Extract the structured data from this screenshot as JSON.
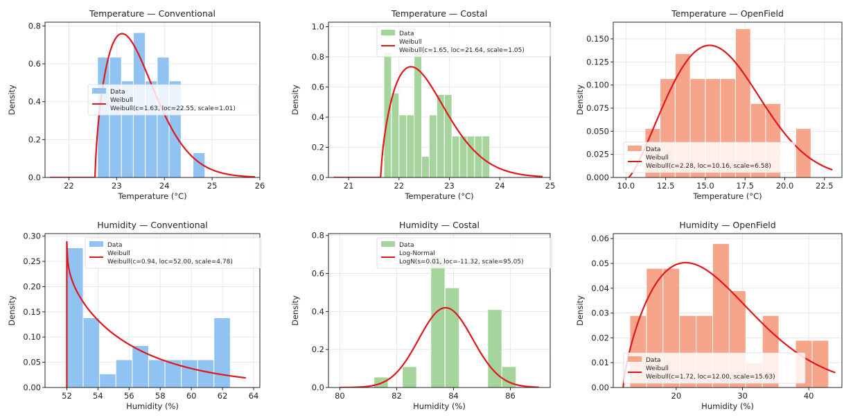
{
  "chart_data": [
    {
      "type": "bar",
      "title": "Temperature — Conventional",
      "xlabel": "Temperature (°C)",
      "ylabel": "Density",
      "xlim": [
        21.5,
        26.0
      ],
      "ylim": [
        0,
        0.82
      ],
      "xticks": [
        22,
        23,
        24,
        25,
        26
      ],
      "yticks": [
        0.0,
        0.2,
        0.4,
        0.6,
        0.8
      ],
      "ytick_labels": [
        "0.0",
        "0.2",
        "0.4",
        "0.6",
        "0.8"
      ],
      "bins": [
        {
          "x0": 22.6,
          "x1": 22.85,
          "y": 0.635
        },
        {
          "x0": 22.85,
          "x1": 23.1,
          "y": 0.635
        },
        {
          "x0": 23.1,
          "x1": 23.35,
          "y": 0.51
        },
        {
          "x0": 23.35,
          "x1": 23.6,
          "y": 0.765
        },
        {
          "x0": 23.6,
          "x1": 23.85,
          "y": 0.51
        },
        {
          "x0": 23.85,
          "x1": 24.1,
          "y": 0.635
        },
        {
          "x0": 24.1,
          "x1": 24.35,
          "y": 0.51
        },
        {
          "x0": 24.35,
          "x1": 24.6,
          "y": 0.0
        },
        {
          "x0": 24.6,
          "x1": 24.85,
          "y": 0.13
        }
      ],
      "fit": {
        "dist": "weibull",
        "c": 1.63,
        "loc": 22.55,
        "scale": 1.01,
        "x_range": [
          21.6,
          25.9
        ]
      },
      "legend": {
        "position": "center-left",
        "entries": [
          {
            "name": "Data",
            "kind": "patch"
          },
          {
            "name": "Weibull",
            "kind": "line",
            "extra": "Weibull(c=1.63, loc=22.55, scale=1.01)"
          }
        ]
      },
      "bar_color": "#90c2f2",
      "edge_color": "#ffffff",
      "line_color": "#e0161b",
      "grid": true
    },
    {
      "type": "bar",
      "title": "Temperature — Costal",
      "xlabel": "Temperature (°C)",
      "ylabel": "Density",
      "xlim": [
        20.6,
        25.0
      ],
      "ylim": [
        0,
        1.03
      ],
      "xticks": [
        21,
        22,
        23,
        24,
        25
      ],
      "yticks": [
        0.0,
        0.2,
        0.4,
        0.6,
        0.8,
        1.0
      ],
      "ytick_labels": [
        "0.0",
        "0.2",
        "0.4",
        "0.6",
        "0.8",
        "1.0"
      ],
      "bins": [
        {
          "x0": 21.7,
          "x1": 21.85,
          "y": 0.83
        },
        {
          "x0": 21.85,
          "x1": 22.0,
          "y": 0.56
        },
        {
          "x0": 22.0,
          "x1": 22.15,
          "y": 0.415
        },
        {
          "x0": 22.15,
          "x1": 22.3,
          "y": 0.415
        },
        {
          "x0": 22.3,
          "x1": 22.45,
          "y": 0.83
        },
        {
          "x0": 22.45,
          "x1": 22.6,
          "y": 0.14
        },
        {
          "x0": 22.6,
          "x1": 22.75,
          "y": 0.415
        },
        {
          "x0": 22.75,
          "x1": 22.9,
          "y": 0.55
        },
        {
          "x0": 22.9,
          "x1": 23.05,
          "y": 0.55
        },
        {
          "x0": 23.05,
          "x1": 23.2,
          "y": 0.275
        },
        {
          "x0": 23.2,
          "x1": 23.35,
          "y": 0.275
        },
        {
          "x0": 23.35,
          "x1": 23.5,
          "y": 0.275
        },
        {
          "x0": 23.5,
          "x1": 23.65,
          "y": 0.275
        },
        {
          "x0": 23.65,
          "x1": 23.8,
          "y": 0.275
        }
      ],
      "fit": {
        "dist": "weibull",
        "c": 1.65,
        "loc": 21.64,
        "scale": 1.05,
        "x_range": [
          20.7,
          24.85
        ]
      },
      "legend": {
        "position": "upper-center",
        "entries": [
          {
            "name": "Data",
            "kind": "patch"
          },
          {
            "name": "Weibull",
            "kind": "line",
            "extra": "Weibull(c=1.65, loc=21.64, scale=1.05)"
          }
        ]
      },
      "bar_color": "#a5d49c",
      "edge_color": "#ffffff",
      "line_color": "#e0161b",
      "grid": true
    },
    {
      "type": "bar",
      "title": "Temperature — OpenField",
      "xlabel": "Temperature (°C)",
      "ylabel": "Density",
      "xlim": [
        9.2,
        23.6
      ],
      "ylim": [
        0,
        0.168
      ],
      "xticks": [
        10.0,
        12.5,
        15.0,
        17.5,
        20.0,
        22.5
      ],
      "xtick_labels": [
        "10.0",
        "12.5",
        "15.0",
        "17.5",
        "20.0",
        "22.5"
      ],
      "yticks": [
        0.0,
        0.025,
        0.05,
        0.075,
        0.1,
        0.125,
        0.15
      ],
      "ytick_labels": [
        "0.000",
        "0.025",
        "0.050",
        "0.075",
        "0.100",
        "0.125",
        "0.150"
      ],
      "bins": [
        {
          "x0": 11.2,
          "x1": 12.15,
          "y": 0.053
        },
        {
          "x0": 12.15,
          "x1": 13.1,
          "y": 0.107
        },
        {
          "x0": 13.1,
          "x1": 14.05,
          "y": 0.134
        },
        {
          "x0": 14.05,
          "x1": 15.0,
          "y": 0.107
        },
        {
          "x0": 15.0,
          "x1": 15.95,
          "y": 0.107
        },
        {
          "x0": 15.95,
          "x1": 16.9,
          "y": 0.107
        },
        {
          "x0": 16.9,
          "x1": 17.85,
          "y": 0.161
        },
        {
          "x0": 17.85,
          "x1": 18.8,
          "y": 0.08
        },
        {
          "x0": 18.8,
          "x1": 19.75,
          "y": 0.08
        },
        {
          "x0": 19.75,
          "x1": 20.7,
          "y": 0.0
        },
        {
          "x0": 20.7,
          "x1": 21.65,
          "y": 0.053
        }
      ],
      "fit": {
        "dist": "weibull",
        "c": 2.28,
        "loc": 10.16,
        "scale": 6.58,
        "x_range": [
          10.16,
          23.0
        ]
      },
      "legend": {
        "position": "lower-left",
        "entries": [
          {
            "name": "Data",
            "kind": "patch"
          },
          {
            "name": "Weibull",
            "kind": "line",
            "extra": "Weibull(c=2.28, loc=10.16, scale=6.58)"
          }
        ]
      },
      "bar_color": "#f6a48a",
      "edge_color": "#ffffff",
      "line_color": "#e0161b",
      "grid": true
    },
    {
      "type": "bar",
      "title": "Humidity — Conventional",
      "xlabel": "Humidity (%)",
      "ylabel": "Density",
      "xlim": [
        50.6,
        64.4
      ],
      "ylim": [
        0,
        0.305
      ],
      "xticks": [
        52,
        54,
        56,
        58,
        60,
        62,
        64
      ],
      "yticks": [
        0.0,
        0.05,
        0.1,
        0.15,
        0.2,
        0.25,
        0.3
      ],
      "ytick_labels": [
        "0.00",
        "0.05",
        "0.10",
        "0.15",
        "0.20",
        "0.25",
        "0.30"
      ],
      "bins": [
        {
          "x0": 52.0,
          "x1": 53.05,
          "y": 0.277
        },
        {
          "x0": 53.05,
          "x1": 54.1,
          "y": 0.138
        },
        {
          "x0": 54.1,
          "x1": 55.15,
          "y": 0.027
        },
        {
          "x0": 55.15,
          "x1": 56.2,
          "y": 0.055
        },
        {
          "x0": 56.2,
          "x1": 57.25,
          "y": 0.083
        },
        {
          "x0": 57.25,
          "x1": 58.3,
          "y": 0.055
        },
        {
          "x0": 58.3,
          "x1": 59.35,
          "y": 0.055
        },
        {
          "x0": 59.35,
          "x1": 60.4,
          "y": 0.055
        },
        {
          "x0": 60.4,
          "x1": 61.45,
          "y": 0.055
        },
        {
          "x0": 61.45,
          "x1": 62.5,
          "y": 0.138
        }
      ],
      "fit": {
        "dist": "weibull",
        "c": 0.94,
        "loc": 52.0,
        "scale": 4.78,
        "x_range": [
          52.0,
          63.5
        ],
        "spike_top": 0.29
      },
      "legend": {
        "position": "upper-center",
        "entries": [
          {
            "name": "Data",
            "kind": "patch"
          },
          {
            "name": "Weibull",
            "kind": "line",
            "extra": "Weibull(c=0.94, loc=52.00, scale=4.78)"
          }
        ]
      },
      "bar_color": "#90c2f2",
      "edge_color": "#ffffff",
      "line_color": "#e0161b",
      "grid": true
    },
    {
      "type": "bar",
      "title": "Humidity — Costal",
      "xlabel": "Humidity (%)",
      "ylabel": "Density",
      "xlim": [
        79.6,
        87.4
      ],
      "ylim": [
        0,
        0.81
      ],
      "xticks": [
        80,
        82,
        84,
        86
      ],
      "yticks": [
        0.0,
        0.2,
        0.4,
        0.6,
        0.8
      ],
      "ytick_labels": [
        "0.0",
        "0.2",
        "0.4",
        "0.6",
        "0.8"
      ],
      "bins": [
        {
          "x0": 81.2,
          "x1": 81.7,
          "y": 0.055
        },
        {
          "x0": 81.7,
          "x1": 82.2,
          "y": 0.0
        },
        {
          "x0": 82.2,
          "x1": 82.7,
          "y": 0.11
        },
        {
          "x0": 82.7,
          "x1": 83.2,
          "y": 0.0
        },
        {
          "x0": 83.2,
          "x1": 83.7,
          "y": 0.69
        },
        {
          "x0": 83.7,
          "x1": 84.2,
          "y": 0.525
        },
        {
          "x0": 84.2,
          "x1": 84.7,
          "y": 0.0
        },
        {
          "x0": 84.7,
          "x1": 85.2,
          "y": 0.0
        },
        {
          "x0": 85.2,
          "x1": 85.7,
          "y": 0.41
        },
        {
          "x0": 85.7,
          "x1": 86.2,
          "y": 0.11
        }
      ],
      "fit": {
        "dist": "lognorm",
        "s": 0.01,
        "loc": -11.32,
        "scale": 95.05,
        "x_range": [
          80.0,
          87.0
        ]
      },
      "legend": {
        "position": "upper-center",
        "entries": [
          {
            "name": "Data",
            "kind": "patch"
          },
          {
            "name": "Log-Normal",
            "kind": "line",
            "extra": "LogN(s=0.01, loc=-11.32, scale=95.05)"
          }
        ]
      },
      "bar_color": "#a5d49c",
      "edge_color": "#ffffff",
      "line_color": "#e0161b",
      "grid": true
    },
    {
      "type": "bar",
      "title": "Humidity — OpenField",
      "xlabel": "Humidity (%)",
      "ylabel": "Density",
      "xlim": [
        10.5,
        45.0
      ],
      "ylim": [
        0,
        0.062
      ],
      "xticks": [
        20,
        30,
        40
      ],
      "yticks": [
        0.0,
        0.01,
        0.02,
        0.03,
        0.04,
        0.05,
        0.06
      ],
      "ytick_labels": [
        "0.00",
        "0.01",
        "0.02",
        "0.03",
        "0.04",
        "0.05",
        "0.06"
      ],
      "bins": [
        {
          "x0": 13.0,
          "x1": 15.5,
          "y": 0.029
        },
        {
          "x0": 15.5,
          "x1": 18.0,
          "y": 0.048
        },
        {
          "x0": 18.0,
          "x1": 20.5,
          "y": 0.048
        },
        {
          "x0": 20.5,
          "x1": 23.0,
          "y": 0.029
        },
        {
          "x0": 23.0,
          "x1": 25.5,
          "y": 0.029
        },
        {
          "x0": 25.5,
          "x1": 28.0,
          "y": 0.058
        },
        {
          "x0": 28.0,
          "x1": 30.5,
          "y": 0.039
        },
        {
          "x0": 30.5,
          "x1": 33.0,
          "y": 0.01
        },
        {
          "x0": 33.0,
          "x1": 35.5,
          "y": 0.029
        },
        {
          "x0": 35.5,
          "x1": 38.0,
          "y": 0.0
        },
        {
          "x0": 38.0,
          "x1": 40.5,
          "y": 0.019
        },
        {
          "x0": 40.5,
          "x1": 43.0,
          "y": 0.019
        }
      ],
      "fit": {
        "dist": "weibull",
        "c": 1.72,
        "loc": 12.0,
        "scale": 15.63,
        "x_range": [
          12.0,
          44.0
        ]
      },
      "legend": {
        "position": "lower-left",
        "entries": [
          {
            "name": "Data",
            "kind": "patch"
          },
          {
            "name": "Weibull",
            "kind": "line",
            "extra": "Weibull(c=1.72, loc=12.00, scale=15.63)"
          }
        ]
      },
      "bar_color": "#f6a48a",
      "edge_color": "#ffffff",
      "line_color": "#e0161b",
      "grid": true
    }
  ]
}
